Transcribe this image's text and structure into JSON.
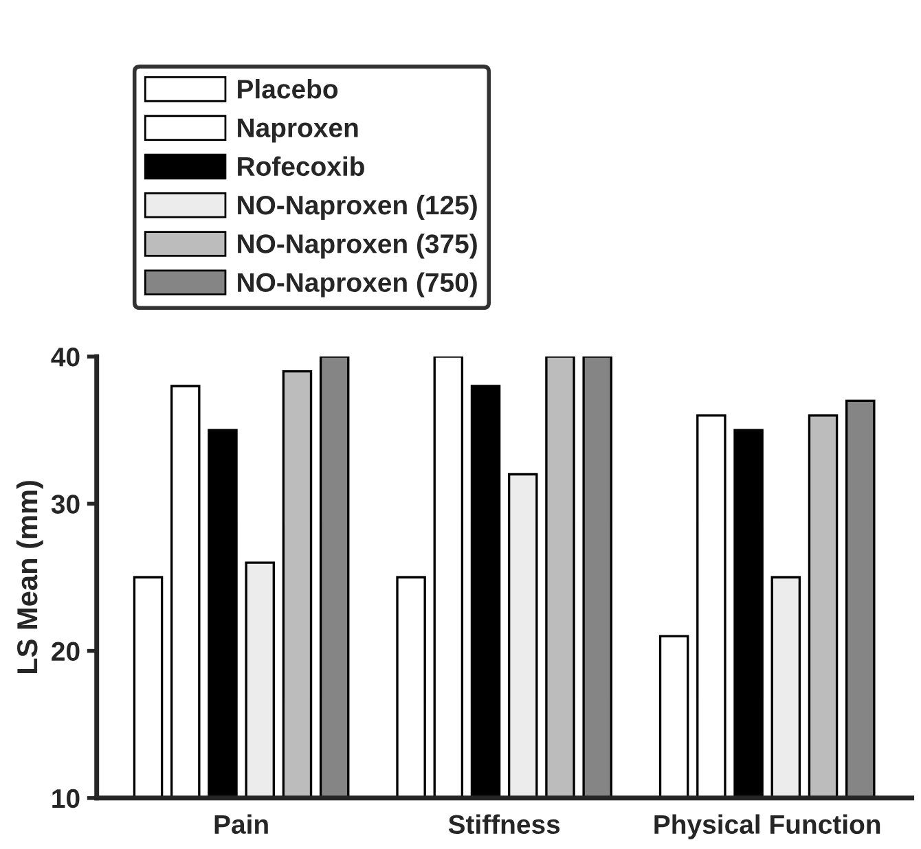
{
  "chart_data": {
    "type": "bar",
    "ylabel": "LS Mean (mm)",
    "categories": [
      "Pain",
      "Stiffness",
      "Physical Function"
    ],
    "series": [
      {
        "name": "Placebo",
        "color": "#ffffff",
        "values": [
          25,
          25,
          21
        ]
      },
      {
        "name": "Naproxen",
        "color": "#ffffff",
        "values": [
          38,
          40,
          36
        ]
      },
      {
        "name": "Rofecoxib",
        "color": "#000000",
        "values": [
          35,
          38,
          35
        ]
      },
      {
        "name": "NO-Naproxen (125)",
        "color": "#ececec",
        "values": [
          26,
          32,
          25
        ]
      },
      {
        "name": "NO-Naproxen (375)",
        "color": "#bcbcbc",
        "values": [
          39,
          40,
          36
        ]
      },
      {
        "name": "NO-Naproxen (750)",
        "color": "#858585",
        "values": [
          40,
          40,
          37
        ]
      }
    ],
    "ylim": [
      10,
      40
    ],
    "yticks": [
      10,
      20,
      30,
      40
    ],
    "grid": false,
    "legend": "top left"
  }
}
